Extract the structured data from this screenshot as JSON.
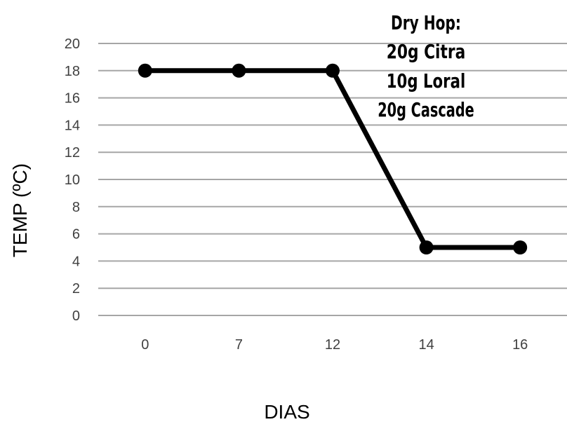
{
  "chart_data": {
    "type": "line",
    "title": "",
    "xlabel": "DIAS",
    "ylabel": "TEMP (ºC)",
    "categories": [
      "0",
      "7",
      "12",
      "14",
      "16"
    ],
    "series": [
      {
        "values": [
          18,
          18,
          18,
          5,
          5
        ]
      }
    ],
    "ylim": [
      0,
      20
    ],
    "yticks": [
      "0",
      "2",
      "4",
      "6",
      "8",
      "10",
      "12",
      "14",
      "16",
      "18",
      "20"
    ],
    "grid": true,
    "legend": "none",
    "line_color": "#000000",
    "grid_color": "#a6a6a6",
    "annotation": [
      "Dry Hop:",
      "20g Citra",
      "10g Loral",
      "20g Cascade"
    ]
  }
}
